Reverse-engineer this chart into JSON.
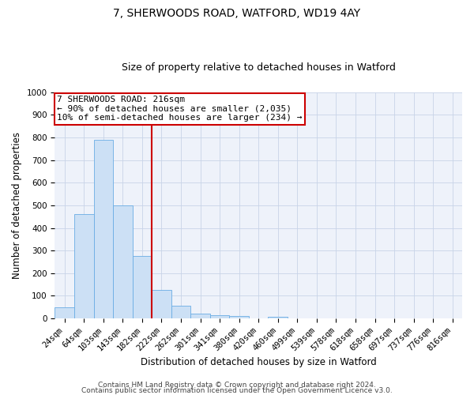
{
  "title": "7, SHERWOODS ROAD, WATFORD, WD19 4AY",
  "subtitle": "Size of property relative to detached houses in Watford",
  "xlabel": "Distribution of detached houses by size in Watford",
  "ylabel": "Number of detached properties",
  "bar_labels": [
    "24sqm",
    "64sqm",
    "103sqm",
    "143sqm",
    "182sqm",
    "222sqm",
    "262sqm",
    "301sqm",
    "341sqm",
    "380sqm",
    "420sqm",
    "460sqm",
    "499sqm",
    "539sqm",
    "578sqm",
    "618sqm",
    "658sqm",
    "697sqm",
    "737sqm",
    "776sqm",
    "816sqm"
  ],
  "bar_values": [
    48,
    460,
    790,
    500,
    275,
    125,
    55,
    22,
    15,
    10,
    0,
    8,
    0,
    0,
    0,
    0,
    0,
    0,
    0,
    0,
    0
  ],
  "bar_color": "#cce0f5",
  "bar_edgecolor": "#6aade4",
  "ylim": [
    0,
    1000
  ],
  "yticks": [
    0,
    100,
    200,
    300,
    400,
    500,
    600,
    700,
    800,
    900,
    1000
  ],
  "vline_x": 4.5,
  "vline_color": "#cc0000",
  "annotation_text": "7 SHERWOODS ROAD: 216sqm\n← 90% of detached houses are smaller (2,035)\n10% of semi-detached houses are larger (234) →",
  "annotation_box_color": "#cc0000",
  "footer1": "Contains HM Land Registry data © Crown copyright and database right 2024.",
  "footer2": "Contains public sector information licensed under the Open Government Licence v3.0.",
  "background_color": "#eef2fa",
  "grid_color": "#c8d4e8",
  "title_fontsize": 10,
  "subtitle_fontsize": 9,
  "axis_label_fontsize": 8.5,
  "tick_fontsize": 7.5,
  "annotation_fontsize": 8,
  "footer_fontsize": 6.5
}
